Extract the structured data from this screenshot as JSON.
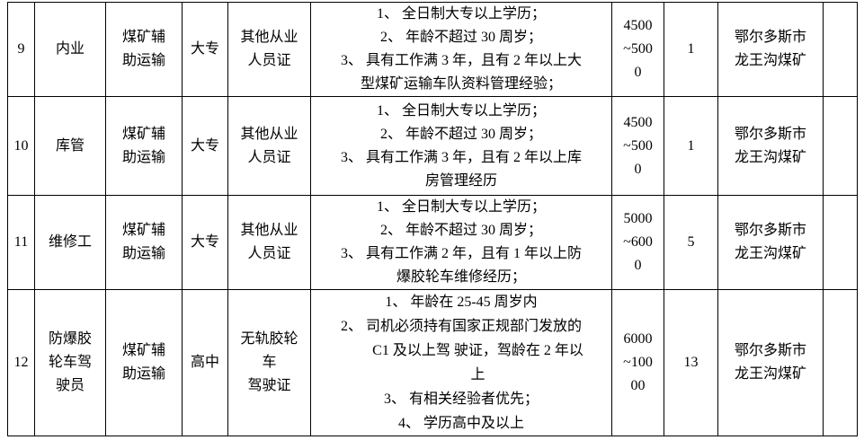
{
  "page": {
    "background_color": "#ffffff",
    "border_color": "#000000",
    "text_color": "#000000"
  },
  "table": {
    "description_names": [
      "row-number",
      "job-title",
      "department",
      "education",
      "certificate",
      "requirements",
      "salary-range",
      "headcount",
      "location",
      "note"
    ],
    "rows": [
      {
        "no": "9",
        "job_lines": [
          "内业"
        ],
        "dept_lines": [
          "煤矿辅",
          "助运输"
        ],
        "education": "大专",
        "cert_lines": [
          "其他从业",
          "人员证"
        ],
        "requirements": [
          {
            "text": "1、 全日制大专以上学历；",
            "indent": false
          },
          {
            "text": "2、 年龄不超过 30 周岁；",
            "indent": false
          },
          {
            "text": "3、 具有工作满 3 年，且有 2 年以上大",
            "indent": false
          },
          {
            "text": "型煤矿运输车队资料管理经验；",
            "indent": false
          }
        ],
        "salary_lines": [
          "4500",
          "~500",
          "0"
        ],
        "count": "1",
        "location_lines": [
          "鄂尔多斯市",
          "龙王沟煤矿"
        ],
        "note": ""
      },
      {
        "no": "10",
        "job_lines": [
          "库管"
        ],
        "dept_lines": [
          "煤矿辅",
          "助运输"
        ],
        "education": "大专",
        "cert_lines": [
          "其他从业",
          "人员证"
        ],
        "requirements": [
          {
            "text": "1、 全日制大专以上学历；",
            "indent": false
          },
          {
            "text": "2、 年龄不超过 30 周岁；",
            "indent": false
          },
          {
            "text": "3、 具有工作满 3 年，且有 2 年以上库",
            "indent": false
          },
          {
            "text": "房管理经历",
            "indent": false
          }
        ],
        "salary_lines": [
          "4500",
          "~500",
          "0"
        ],
        "count": "1",
        "location_lines": [
          "鄂尔多斯市",
          "龙王沟煤矿"
        ],
        "note": ""
      },
      {
        "no": "11",
        "job_lines": [
          "维修工"
        ],
        "dept_lines": [
          "煤矿辅",
          "助运输"
        ],
        "education": "大专",
        "cert_lines": [
          "其他从业",
          "人员证"
        ],
        "requirements": [
          {
            "text": "1、 全日制大专以上学历；",
            "indent": false
          },
          {
            "text": "2、 年龄不超过 30 周岁；",
            "indent": false
          },
          {
            "text": "3、 具有工作满 2 年，且有 1 年以上防",
            "indent": false
          },
          {
            "text": "爆胶轮车维修经历；",
            "indent": false
          }
        ],
        "salary_lines": [
          "5000",
          "~600",
          "0"
        ],
        "count": "5",
        "location_lines": [
          "鄂尔多斯市",
          "龙王沟煤矿"
        ],
        "note": ""
      },
      {
        "no": "12",
        "job_lines": [
          "防爆胶",
          "轮车驾",
          "驶员"
        ],
        "dept_lines": [
          "煤矿辅",
          "助运输"
        ],
        "education": "高中",
        "cert_lines": [
          "无轨胶轮",
          "车",
          "驾驶证"
        ],
        "requirements": [
          {
            "text": "1、 年龄在 25-45 周岁内",
            "indent": false
          },
          {
            "text": "2、 司机必须持有国家正规部门发放的",
            "indent": false
          },
          {
            "text": "C1 及以上驾 驶证，驾龄在 2 年以",
            "indent": true
          },
          {
            "text": "上",
            "indent": true
          },
          {
            "text": "3、 有相关经验者优先；",
            "indent": false
          },
          {
            "text": "4、 学历高中及以上",
            "indent": false
          }
        ],
        "salary_lines": [
          "6000",
          "~100",
          "00"
        ],
        "count": "13",
        "location_lines": [
          "鄂尔多斯市",
          "龙王沟煤矿"
        ],
        "note": ""
      }
    ]
  }
}
